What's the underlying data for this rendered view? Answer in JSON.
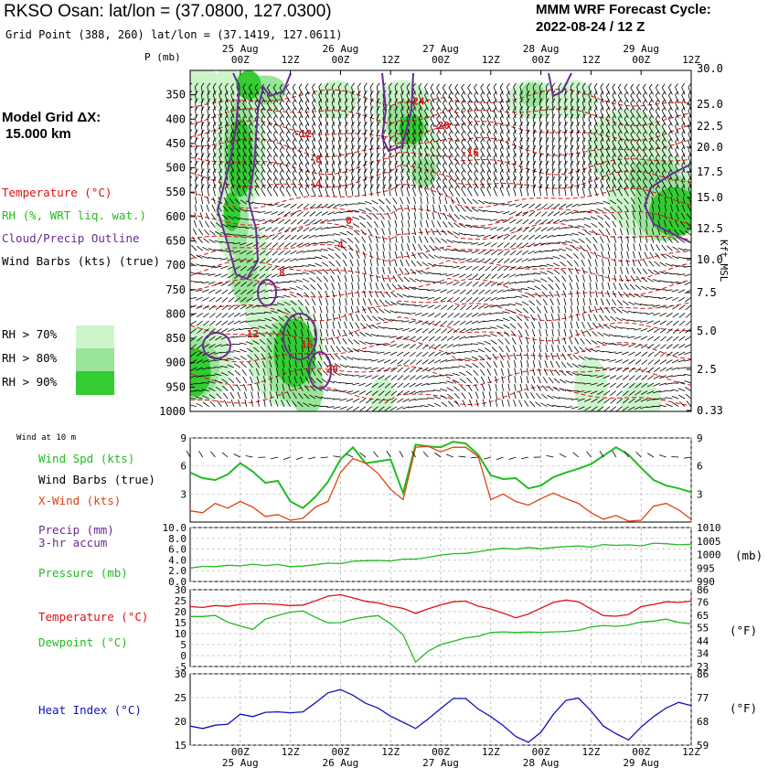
{
  "header": {
    "title": "RKSO Osan:  lat/lon = (37.0800, 127.0300)",
    "gridpoint": "Grid Point (388, 260) lat/lon = (37.1419, 127.0611)",
    "cycle_line1": "MMM WRF Forecast Cycle:",
    "cycle_line2": "2022-08-24 / 12  Z",
    "model_grid_line1": "Model Grid ΔX:",
    "model_grid_line2": "15.000 km"
  },
  "colors": {
    "temperature": "#dd1111",
    "rh": "#22bb22",
    "cloud": "#6a2c91",
    "black": "#000000",
    "xwind": "#dd4411",
    "heat_index": "#1111bb",
    "rh70": "#ccf5cc",
    "rh80": "#99e599",
    "rh90": "#33cc33"
  },
  "legend": {
    "temperature": "Temperature (°C)",
    "rh": "RH (%, WRT liq. wat.)",
    "cloud": "Cloud/Precip Outline",
    "barbs": "Wind Barbs (kts) (true)",
    "rh70": "RH > 70%",
    "rh80": "RH > 80%",
    "rh90": "RH > 90%"
  },
  "panel_labels": {
    "wind10m": "Wind at 10 m",
    "wind_spd": "Wind Spd (kts)",
    "wind_barbs": "Wind Barbs (true)",
    "xwind": "X-Wind (kts)",
    "precip1": "Precip (mm)",
    "precip2": "3-hr accum",
    "pressure": "Pressure (mb)",
    "pressure_unit": "(mb)",
    "temperature": "Temperature (°C)",
    "dewpoint": "Dewpoint (°C)",
    "deg_f": "(°F)",
    "deg_f2": "(°F)",
    "heat_index": "Heat Index (°C)",
    "kft": "Kft MSL",
    "p_axis": "P (mb)"
  },
  "chart_data": [
    {
      "name": "cross_section",
      "type": "heatmap",
      "time_ticks": [
        "00Z",
        "12Z",
        "00Z",
        "12Z",
        "00Z",
        "12Z",
        "00Z",
        "12Z",
        "00Z",
        "12Z"
      ],
      "date_labels": [
        "25 Aug",
        "26 Aug",
        "27 Aug",
        "28 Aug",
        "29 Aug"
      ],
      "time_range_hours": [
        12,
        132
      ],
      "pressure_levels": [
        "350",
        "400",
        "450",
        "500",
        "550",
        "600",
        "650",
        "700",
        "750",
        "800",
        "850",
        "900",
        "950",
        "1000"
      ],
      "top_right_pressure": "30.0",
      "height_kft": [
        "25.0",
        "22.5",
        "20.0",
        "17.5",
        "15.0",
        "12.5",
        "10.0",
        "7.5",
        "5.0",
        "2.5",
        "0.33"
      ],
      "temperature_labels": [
        {
          "hour": 66,
          "p": 370,
          "label": "-24"
        },
        {
          "hour": 72,
          "p": 420,
          "label": "-20"
        },
        {
          "hour": 79,
          "p": 475,
          "label": "-16"
        },
        {
          "hour": 39,
          "p": 437,
          "label": "-12"
        },
        {
          "hour": 42,
          "p": 490,
          "label": "-8"
        },
        {
          "hour": 42,
          "p": 540,
          "label": "-4"
        },
        {
          "hour": 50,
          "p": 615,
          "label": "0"
        },
        {
          "hour": 48,
          "p": 665,
          "label": "4"
        },
        {
          "hour": 34,
          "p": 722,
          "label": "8"
        },
        {
          "hour": 27,
          "p": 848,
          "label": "12"
        },
        {
          "hour": 40,
          "p": 870,
          "label": "16"
        },
        {
          "hour": 46,
          "p": 920,
          "label": "20"
        }
      ]
    },
    {
      "name": "wind_10m",
      "type": "line",
      "x_hours": [
        12,
        15,
        18,
        21,
        24,
        27,
        30,
        33,
        36,
        39,
        42,
        45,
        48,
        51,
        54,
        57,
        60,
        63,
        66,
        69,
        72,
        75,
        78,
        81,
        84,
        87,
        90,
        93,
        96,
        99,
        102,
        105,
        108,
        111,
        114,
        117,
        120,
        123,
        126,
        129,
        132
      ],
      "yticks_left": [
        "9",
        "6",
        "3"
      ],
      "yticks_right": [
        "9",
        "6",
        "3"
      ],
      "ylim": [
        0,
        9
      ],
      "series": [
        {
          "name": "Wind Spd (kts)",
          "values": [
            5.3,
            4.7,
            4.5,
            5.1,
            6.3,
            5.4,
            4.2,
            4.4,
            2.2,
            1.5,
            2.7,
            4.3,
            6.7,
            8.0,
            6.3,
            6.5,
            6.7,
            3.1,
            8.3,
            8.1,
            8.0,
            8.6,
            8.4,
            7.2,
            5.0,
            4.6,
            4.7,
            3.6,
            3.9,
            4.8,
            5.3,
            5.7,
            6.2,
            7.1,
            8.0,
            7.2,
            5.8,
            4.5,
            3.9,
            3.6,
            3.2
          ]
        },
        {
          "name": "X-Wind (kts)",
          "values": [
            1.2,
            1.0,
            2.0,
            1.5,
            2.2,
            1.6,
            0.6,
            0.8,
            0.2,
            0.4,
            1.6,
            2.2,
            5.3,
            6.8,
            6.3,
            5.2,
            3.5,
            2.4,
            8.0,
            8.1,
            7.5,
            8.0,
            8.0,
            7.0,
            2.4,
            3.0,
            2.2,
            1.8,
            2.5,
            3.1,
            2.5,
            2.0,
            1.0,
            0.3,
            0.7,
            0.1,
            0.2,
            1.7,
            2.0,
            1.3,
            0.3
          ]
        }
      ]
    },
    {
      "name": "precip_pressure",
      "type": "line",
      "yticks_left": [
        "10.0",
        "8.0",
        "6.0",
        "4.0",
        "2.0",
        "0.0"
      ],
      "yticks_right": [
        "1010",
        "1005",
        "1000",
        "995",
        "990"
      ],
      "precip_mm": [],
      "series": [
        {
          "name": "Pressure (mb)",
          "values": [
            995.0,
            995.6,
            995.5,
            996.0,
            995.8,
            996.4,
            995.9,
            996.3,
            995.5,
            995.7,
            996.2,
            996.8,
            996.6,
            997.5,
            997.7,
            997.8,
            997.6,
            998.3,
            998.3,
            999.0,
            999.8,
            1000.3,
            1000.4,
            1001.0,
            1001.8,
            1002.3,
            1002.0,
            1002.6,
            1002.1,
            1002.6,
            1002.9,
            1003.2,
            1002.7,
            1003.7,
            1003.4,
            1003.6,
            1003.2,
            1004.2,
            1004.0,
            1003.6,
            1003.8
          ]
        }
      ]
    },
    {
      "name": "temp_dewpoint",
      "type": "line",
      "yticks_left": [
        "30",
        "25",
        "20",
        "15",
        "10",
        "5",
        "0",
        "-5"
      ],
      "yticks_right": [
        "86",
        "76",
        "65",
        "55",
        "44",
        "34",
        "23"
      ],
      "series": [
        {
          "name": "Temperature (°C)",
          "values": [
            22.3,
            21.9,
            22.8,
            22.4,
            23.3,
            23.6,
            23.6,
            23.3,
            22.8,
            23.0,
            24.9,
            27.1,
            27.7,
            26.3,
            24.7,
            24.0,
            22.5,
            21.5,
            19.2,
            21.3,
            23.1,
            24.5,
            24.8,
            22.5,
            21.2,
            19.3,
            17.2,
            18.9,
            21.6,
            24.2,
            25.3,
            24.5,
            21.2,
            18.2,
            17.9,
            18.7,
            22.3,
            23.3,
            24.5,
            24.2,
            24.8
          ]
        },
        {
          "name": "Dewpoint (°C)",
          "values": [
            17.8,
            17.8,
            18.3,
            15.2,
            13.4,
            11.9,
            16.6,
            18.3,
            19.8,
            20.3,
            17.4,
            14.9,
            15.0,
            16.6,
            17.6,
            18.2,
            14.5,
            9.4,
            -3.0,
            2.0,
            5.0,
            6.5,
            8.1,
            8.8,
            10.5,
            10.8,
            10.5,
            10.7,
            10.6,
            10.8,
            11.0,
            11.5,
            13.0,
            13.7,
            13.3,
            13.9,
            15.3,
            15.7,
            16.6,
            15.1,
            14.5
          ]
        }
      ]
    },
    {
      "name": "heat_index",
      "type": "line",
      "yticks_left": [
        "30",
        "25",
        "20",
        "15"
      ],
      "yticks_right": [
        "86",
        "77",
        "68",
        "59"
      ],
      "xtick_labels": [
        "00Z",
        "12Z",
        "00Z",
        "12Z",
        "00Z",
        "12Z",
        "00Z",
        "12Z",
        "00Z",
        "12Z"
      ],
      "date_labels": [
        "25 Aug",
        "26 Aug",
        "27 Aug",
        "28 Aug",
        "29 Aug"
      ],
      "series": [
        {
          "name": "Heat Index (°C)",
          "values": [
            19.0,
            18.5,
            19.2,
            19.4,
            21.5,
            21.0,
            21.9,
            22.0,
            21.8,
            22.0,
            23.9,
            26.0,
            26.7,
            25.5,
            23.8,
            22.8,
            21.1,
            19.8,
            18.5,
            20.5,
            22.7,
            24.8,
            24.8,
            22.6,
            21.0,
            19.1,
            16.8,
            15.6,
            17.7,
            21.5,
            24.4,
            24.9,
            22.2,
            19.0,
            17.4,
            16.1,
            18.8,
            21.0,
            22.8,
            24.0,
            23.3
          ]
        }
      ]
    }
  ]
}
